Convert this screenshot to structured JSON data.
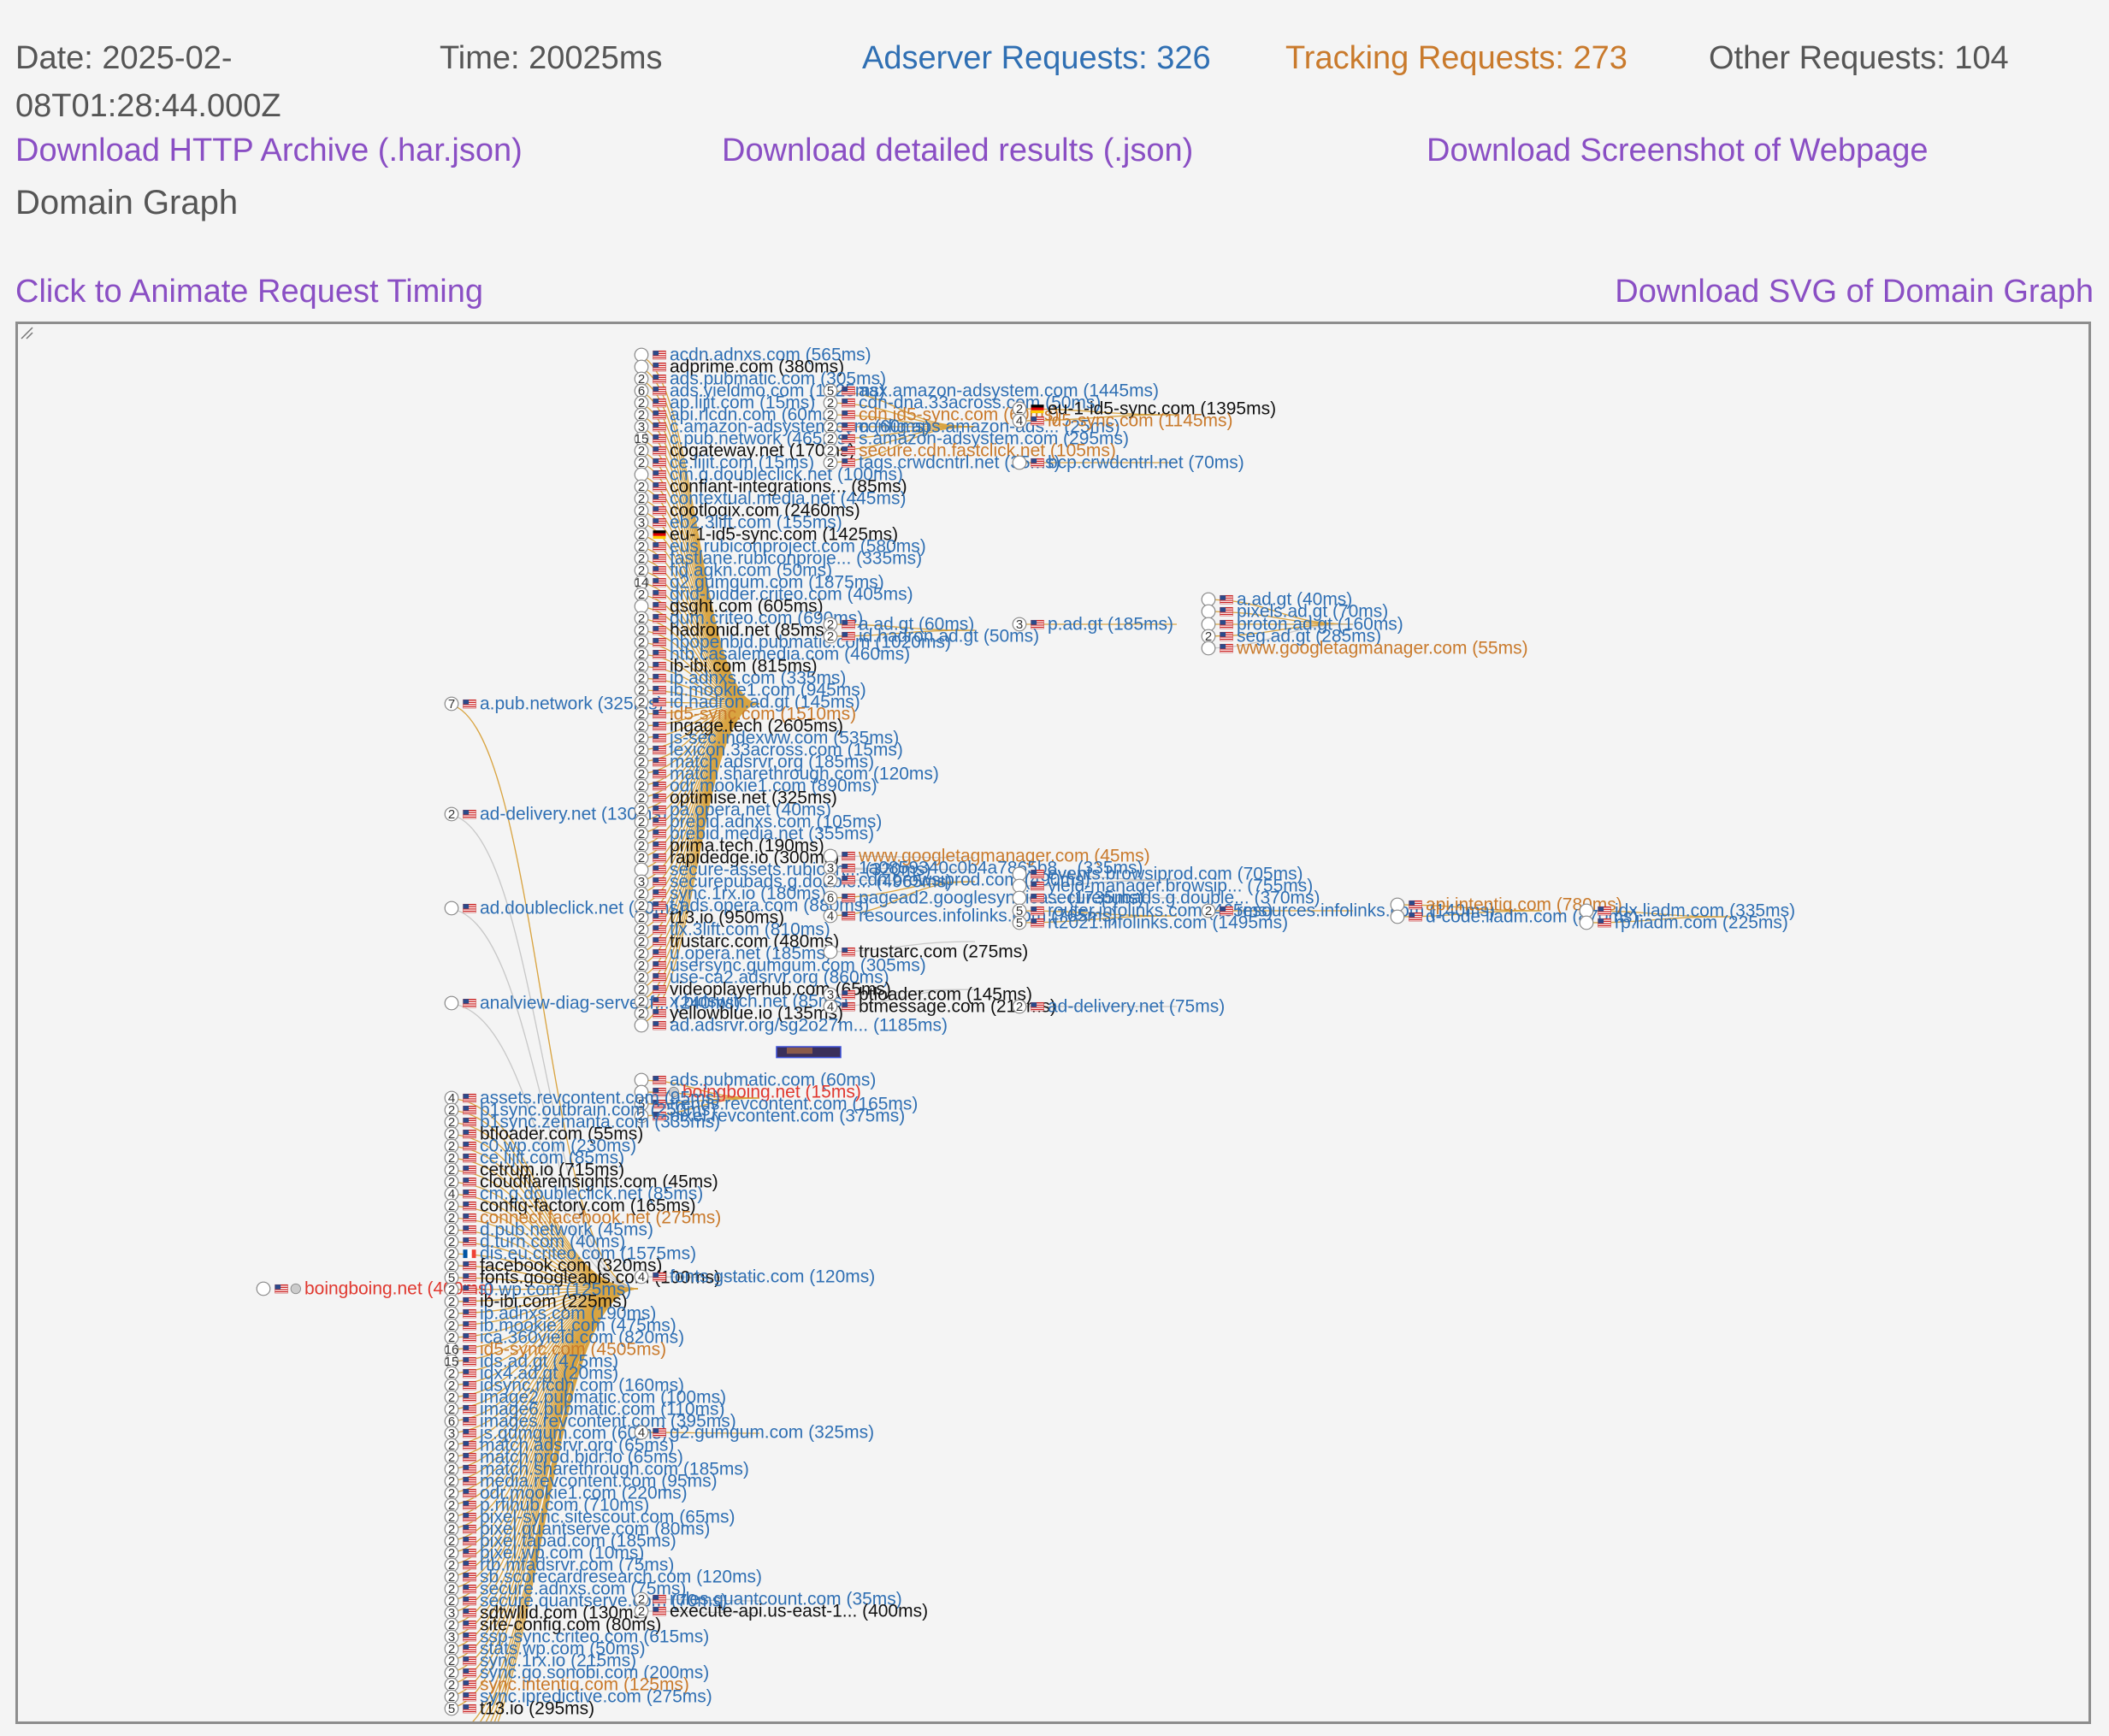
{
  "stats": {
    "date": "Date: 2025-02-08T01:28:44.000Z",
    "time": "Time: 20025ms",
    "adserver": "Adserver Requests: 326",
    "tracking": "Tracking Requests: 273",
    "other": "Other Requests: 104"
  },
  "downloads": {
    "har": "Download HTTP Archive (.har.json)",
    "results": "Download detailed results (.json)",
    "screenshot": "Download Screenshot of Webpage"
  },
  "graph_title": "Domain Graph",
  "actions": {
    "animate": "Click to Animate Request Timing",
    "svg": "Download SVG of Domain Graph"
  },
  "colors": {
    "adserver": "#2f6fb3",
    "tracking": "#c97a2c",
    "other": "#555555",
    "link": "#8a4fc4",
    "edge": "#d9a441",
    "edge_other": "#c8c8c8",
    "root": "#e0382f"
  },
  "graph": {
    "root": {
      "label": "boingboing.net (400ms)",
      "cat": "root"
    },
    "level1": [
      {
        "label": "a.pub.network (325ms)",
        "cat": "ad",
        "count": "7"
      },
      {
        "label": "ad-delivery.net (130ms)",
        "cat": "ad",
        "count": "2"
      },
      {
        "label": "ad.doubleclick.net (50ms)",
        "cat": "ad",
        "count": ""
      },
      {
        "label": "analview-diag-server.f... (240ms)",
        "cat": "ad",
        "count": ""
      }
    ],
    "pub_children": [
      {
        "label": "acdn.adnxs.com (565ms)",
        "cat": "ad",
        "count": ""
      },
      {
        "label": "adprime.com (380ms)",
        "cat": "other",
        "count": ""
      },
      {
        "label": "ads.pubmatic.com (305ms)",
        "cat": "ad",
        "count": "2"
      },
      {
        "label": "ads.yieldmo.com (1725ms)",
        "cat": "ad",
        "count": "6"
      },
      {
        "label": "ap.lijit.com (15ms)",
        "cat": "ad",
        "count": "2"
      },
      {
        "label": "api.rlcdn.com (60ms)",
        "cat": "ad",
        "count": "2"
      },
      {
        "label": "c.amazon-adsystem.com (60ms)",
        "cat": "ad",
        "count": "3"
      },
      {
        "label": "c.pub.network (465ms)",
        "cat": "ad",
        "count": "15"
      },
      {
        "label": "cogateway.net (170ms)",
        "cat": "other",
        "count": "2"
      },
      {
        "label": "ce.lijit.com (15ms)",
        "cat": "ad",
        "count": "2"
      },
      {
        "label": "cm.g.doubleclick.net (100ms)",
        "cat": "ad",
        "count": ""
      },
      {
        "label": "confiant-integrations... (85ms)",
        "cat": "other",
        "count": "2"
      },
      {
        "label": "contextual.media.net (445ms)",
        "cat": "ad",
        "count": "2"
      },
      {
        "label": "cootlogix.com (2460ms)",
        "cat": "other",
        "count": "2"
      },
      {
        "label": "eb2.3lift.com (155ms)",
        "cat": "ad",
        "count": "3"
      },
      {
        "label": "eu-1-id5-sync.com (1425ms)",
        "cat": "other",
        "count": "2",
        "flag": "de"
      },
      {
        "label": "eus.rubiconproject.com (580ms)",
        "cat": "ad",
        "count": "2"
      },
      {
        "label": "fastlane.rubiconproje... (335ms)",
        "cat": "ad",
        "count": "2"
      },
      {
        "label": "fid.agkn.com (50ms)",
        "cat": "ad",
        "count": "2"
      },
      {
        "label": "g2.gumgum.com (1875ms)",
        "cat": "ad",
        "count": "14"
      },
      {
        "label": "grid-bidder.criteo.com (405ms)",
        "cat": "ad",
        "count": "2"
      },
      {
        "label": "gsght.com (605ms)",
        "cat": "other",
        "count": ""
      },
      {
        "label": "gum.criteo.com (690ms)",
        "cat": "ad",
        "count": "2"
      },
      {
        "label": "hadronid.net (85ms)",
        "cat": "other",
        "count": "2"
      },
      {
        "label": "hbopenbid.pubmatic.com (1020ms)",
        "cat": "ad",
        "count": "2"
      },
      {
        "label": "htb.casalemedia.com (460ms)",
        "cat": "ad",
        "count": "2"
      },
      {
        "label": "ib-ibi.com (815ms)",
        "cat": "other",
        "count": "2"
      },
      {
        "label": "ib.adnxs.com (335ms)",
        "cat": "ad",
        "count": "2"
      },
      {
        "label": "ib.mookie1.com (945ms)",
        "cat": "ad",
        "count": "2"
      },
      {
        "label": "id.hadron.ad.gt (145ms)",
        "cat": "ad",
        "count": "2"
      },
      {
        "label": "id5-sync.com (1510ms)",
        "cat": "trk",
        "count": "2"
      },
      {
        "label": "ingage.tech (2605ms)",
        "cat": "other",
        "count": "2"
      },
      {
        "label": "js-sec.indexww.com (535ms)",
        "cat": "ad",
        "count": "2"
      },
      {
        "label": "lexicon.33across.com (15ms)",
        "cat": "ad",
        "count": "2"
      },
      {
        "label": "match.adsrvr.org (185ms)",
        "cat": "ad",
        "count": "2"
      },
      {
        "label": "match.sharethrough.com (120ms)",
        "cat": "ad",
        "count": "2"
      },
      {
        "label": "odr.mookie1.com (890ms)",
        "cat": "ad",
        "count": "2"
      },
      {
        "label": "optimise.net (325ms)",
        "cat": "other",
        "count": "2"
      },
      {
        "label": "pa.opera.net (40ms)",
        "cat": "ad",
        "count": "2"
      },
      {
        "label": "prebid.adnxs.com (105ms)",
        "cat": "ad",
        "count": "2"
      },
      {
        "label": "prebid.media.net (355ms)",
        "cat": "ad",
        "count": "2"
      },
      {
        "label": "prima.tech (190ms)",
        "cat": "other",
        "count": "2"
      },
      {
        "label": "rapidedge.io (300ms)",
        "cat": "other",
        "count": "2"
      },
      {
        "label": "secure-assets.rubicon... (320ms)",
        "cat": "ad",
        "count": ""
      },
      {
        "label": "securepubads.g.double... (4965ms)",
        "cat": "ad",
        "count": "3"
      },
      {
        "label": "sync.1rx.io (180ms)",
        "cat": "ad",
        "count": "2"
      },
      {
        "label": "t.ads.opera.com (880ms)",
        "cat": "ad",
        "count": "2"
      },
      {
        "label": "t13.io (950ms)",
        "cat": "other",
        "count": "2"
      },
      {
        "label": "tlx.3lift.com (810ms)",
        "cat": "ad",
        "count": "2"
      },
      {
        "label": "trustarc.com (480ms)",
        "cat": "other",
        "count": "2"
      },
      {
        "label": "u.opera.net (185ms)",
        "cat": "ad",
        "count": "2"
      },
      {
        "label": "usersync.gumgum.com (305ms)",
        "cat": "ad",
        "count": "2"
      },
      {
        "label": "use-ca2.adsrvr.org (860ms)",
        "cat": "ad",
        "count": "2"
      },
      {
        "label": "videoplayerhub.com (65ms)",
        "cat": "other",
        "count": "2"
      },
      {
        "label": "x.bidswitch.net (85ms)",
        "cat": "ad",
        "count": "2"
      },
      {
        "label": "yellowblue.io (135ms)",
        "cat": "other",
        "count": "2"
      },
      {
        "label": "ad.adsrvr.org/sg2o27m... (1185ms)",
        "cat": "ad",
        "count": ""
      }
    ],
    "pub_grandchildren": [
      {
        "label": "aax.amazon-adsystem.com (1445ms)",
        "cat": "ad",
        "count": "5"
      },
      {
        "label": "cdn-dna.33across.com (50ms)",
        "cat": "ad",
        "count": "2"
      },
      {
        "label": "cdn.id5-sync.com (60ms)",
        "cat": "trk",
        "count": "2"
      },
      {
        "label": "config.aps.amazon-ads... (25ms)",
        "cat": "ad",
        "count": "2"
      },
      {
        "label": "s.amazon-adsystem.com (295ms)",
        "cat": "ad",
        "count": "2"
      },
      {
        "label": "secure.cdn.fastclick.net (105ms)",
        "cat": "trk",
        "count": "2"
      },
      {
        "label": "tags.crwdcntrl.net (35ms)",
        "cat": "ad",
        "count": "2"
      },
      {
        "label": "a.ad.gt (60ms)",
        "cat": "ad",
        "count": "2"
      },
      {
        "label": "id.hadron.ad.gt (50ms)",
        "cat": "ad",
        "count": "2"
      },
      {
        "label": "www.googletagmanager.com (45ms)",
        "cat": "trk",
        "count": ""
      },
      {
        "label": "1a0859340c0b4a7865b8... (335ms)",
        "cat": "ad",
        "count": "3"
      },
      {
        "label": "cdn.browsiprod.com (490ms)",
        "cat": "ad",
        "count": "2"
      },
      {
        "label": "pagead2.googlesyndica... (1735ms)",
        "cat": "ad",
        "count": "6"
      },
      {
        "label": "resources.infolinks.com (765ms)",
        "cat": "ad",
        "count": "4"
      },
      {
        "label": "trustarc.com (275ms)",
        "cat": "other",
        "count": ""
      },
      {
        "label": "btloader.com (145ms)",
        "cat": "other",
        "count": "3"
      },
      {
        "label": "btmessage.com (210ms)",
        "cat": "other",
        "count": "4"
      }
    ],
    "level4": [
      {
        "label": "eu-1-id5-sync.com (1395ms)",
        "cat": "other",
        "count": "2",
        "flag": "de"
      },
      {
        "label": "id5-sync.com (1145ms)",
        "cat": "trk",
        "count": "4"
      },
      {
        "label": "bcp.crwdcntrl.net (70ms)",
        "cat": "ad",
        "count": ""
      },
      {
        "label": "p.ad.gt (185ms)",
        "cat": "ad",
        "count": "3"
      },
      {
        "label": "events.browsiprod.com (705ms)",
        "cat": "ad",
        "count": ""
      },
      {
        "label": "yield-manager.browsip... (755ms)",
        "cat": "ad",
        "count": ""
      },
      {
        "label": "securepubads.g.double... (370ms)",
        "cat": "ad",
        "count": ""
      },
      {
        "label": "router.infolinks.com (465ms)",
        "cat": "ad",
        "count": "5"
      },
      {
        "label": "rt2021.infolinks.com (1495ms)",
        "cat": "ad",
        "count": "5"
      },
      {
        "label": "ad-delivery.net (75ms)",
        "cat": "ad",
        "count": "2"
      }
    ],
    "level5": [
      {
        "label": "a.ad.gt (40ms)",
        "cat": "ad",
        "count": ""
      },
      {
        "label": "pixels.ad.gt (70ms)",
        "cat": "ad",
        "count": ""
      },
      {
        "label": "proton.ad.gt (160ms)",
        "cat": "ad",
        "count": ""
      },
      {
        "label": "seg.ad.gt (285ms)",
        "cat": "ad",
        "count": "2"
      },
      {
        "label": "www.googletagmanager.com (55ms)",
        "cat": "trk",
        "count": ""
      },
      {
        "label": "resources.infolinks.com (140ms)",
        "cat": "ad",
        "count": "2"
      },
      {
        "label": "api.intentiq.com (780ms)",
        "cat": "trk",
        "count": ""
      },
      {
        "label": "d-code.liadm.com (870ms)",
        "cat": "ad",
        "count": ""
      },
      {
        "label": "idx.liadm.com (335ms)",
        "cat": "ad",
        "count": ""
      },
      {
        "label": "rp.liadm.com (225ms)",
        "cat": "ad",
        "count": ""
      }
    ],
    "rev_children": [
      {
        "label": "ads.pubmatic.com (60ms)",
        "cat": "ad",
        "count": ""
      },
      {
        "label": "boingboing.net (15ms)",
        "cat": "root",
        "count": ""
      },
      {
        "label": "trends.revcontent.com (165ms)",
        "cat": "ad",
        "count": "5"
      },
      {
        "label": "pixel.revcontent.com (375ms)",
        "cat": "ad",
        "count": "2"
      }
    ],
    "root_children": [
      {
        "label": "assets.revcontent.com (95ms)",
        "cat": "ad",
        "count": "4"
      },
      {
        "label": "b1sync.outbrain.com (250ms)",
        "cat": "ad",
        "count": "2"
      },
      {
        "label": "b1sync.zemanta.com (335ms)",
        "cat": "ad",
        "count": "2"
      },
      {
        "label": "btloader.com (55ms)",
        "cat": "other",
        "count": "2"
      },
      {
        "label": "c0.wp.com (230ms)",
        "cat": "ad",
        "count": "2"
      },
      {
        "label": "ce.lijit.com (85ms)",
        "cat": "ad",
        "count": "2"
      },
      {
        "label": "cetrum.io (715ms)",
        "cat": "other",
        "count": "2"
      },
      {
        "label": "cloudflareinsights.com (45ms)",
        "cat": "other",
        "count": "2"
      },
      {
        "label": "cm.g.doubleclick.net (85ms)",
        "cat": "ad",
        "count": "4"
      },
      {
        "label": "config-factory.com (165ms)",
        "cat": "other",
        "count": "2"
      },
      {
        "label": "connect.facebook.net (275ms)",
        "cat": "trk",
        "count": "2"
      },
      {
        "label": "d.pub.network (45ms)",
        "cat": "ad",
        "count": "2"
      },
      {
        "label": "d.turn.com (40ms)",
        "cat": "ad",
        "count": "2"
      },
      {
        "label": "dis.eu.criteo.com (1575ms)",
        "cat": "ad",
        "count": "2",
        "flag": "fr"
      },
      {
        "label": "facebook.com (320ms)",
        "cat": "other",
        "count": "2"
      },
      {
        "label": "fonts.googleapis.com (100ms)",
        "cat": "other",
        "count": "5"
      },
      {
        "label": "i0.wp.com (125ms)",
        "cat": "ad",
        "count": "2"
      },
      {
        "label": "ib-ibi.com (225ms)",
        "cat": "other",
        "count": "2"
      },
      {
        "label": "ib.adnxs.com (190ms)",
        "cat": "ad",
        "count": "2"
      },
      {
        "label": "ib.mookie1.com (475ms)",
        "cat": "ad",
        "count": "2"
      },
      {
        "label": "ica.360yield.com (820ms)",
        "cat": "ad",
        "count": "2"
      },
      {
        "label": "id5-sync.com (4505ms)",
        "cat": "trk",
        "count": "16"
      },
      {
        "label": "ids.ad.gt (475ms)",
        "cat": "ad",
        "count": "15"
      },
      {
        "label": "idx4.ad.gt (20ms)",
        "cat": "ad",
        "count": "2"
      },
      {
        "label": "idsync.rlcdn.com (160ms)",
        "cat": "ad",
        "count": "2"
      },
      {
        "label": "image2.pubmatic.com (100ms)",
        "cat": "ad",
        "count": "2"
      },
      {
        "label": "image6.pubmatic.com (110ms)",
        "cat": "ad",
        "count": "2"
      },
      {
        "label": "images.revcontent.com (395ms)",
        "cat": "ad",
        "count": "6"
      },
      {
        "label": "js.gumgum.com (60ms)",
        "cat": "ad",
        "count": "3"
      },
      {
        "label": "match.adsrvr.org (65ms)",
        "cat": "ad",
        "count": "2"
      },
      {
        "label": "match.prod.bidr.io (65ms)",
        "cat": "ad",
        "count": "2"
      },
      {
        "label": "match.sharethrough.com (185ms)",
        "cat": "ad",
        "count": "2"
      },
      {
        "label": "media.revcontent.com (95ms)",
        "cat": "ad",
        "count": "2"
      },
      {
        "label": "odr.mookie1.com (220ms)",
        "cat": "ad",
        "count": "2"
      },
      {
        "label": "p.rfihub.com (710ms)",
        "cat": "ad",
        "count": "2"
      },
      {
        "label": "pixel-sync.sitescout.com (65ms)",
        "cat": "ad",
        "count": "2"
      },
      {
        "label": "pixel.quantserve.com (80ms)",
        "cat": "ad",
        "count": "2"
      },
      {
        "label": "pixel.tapad.com (185ms)",
        "cat": "ad",
        "count": "2"
      },
      {
        "label": "pixel.wp.com (10ms)",
        "cat": "ad",
        "count": "2"
      },
      {
        "label": "rtb.mfadsrvr.com (75ms)",
        "cat": "ad",
        "count": "2"
      },
      {
        "label": "sb.scorecardresearch.com (120ms)",
        "cat": "ad",
        "count": "2"
      },
      {
        "label": "secure.adnxs.com (75ms)",
        "cat": "ad",
        "count": "2"
      },
      {
        "label": "secure.quantserve.com (70ms)",
        "cat": "ad",
        "count": "2"
      },
      {
        "label": "sdtwllid.com (130ms)",
        "cat": "other",
        "count": "3"
      },
      {
        "label": "site-config.com (80ms)",
        "cat": "other",
        "count": "2"
      },
      {
        "label": "ssp-sync.criteo.com (615ms)",
        "cat": "ad",
        "count": "3"
      },
      {
        "label": "stats.wp.com (50ms)",
        "cat": "ad",
        "count": "2"
      },
      {
        "label": "sync.1rx.io (215ms)",
        "cat": "ad",
        "count": "2"
      },
      {
        "label": "sync.go.sonobi.com (200ms)",
        "cat": "ad",
        "count": "2"
      },
      {
        "label": "sync.intentiq.com (125ms)",
        "cat": "trk",
        "count": "2"
      },
      {
        "label": "sync.ipredictive.com (275ms)",
        "cat": "ad",
        "count": "2"
      },
      {
        "label": "t13.io (295ms)",
        "cat": "other",
        "count": "5"
      }
    ],
    "root_grandchildren": [
      {
        "label": "fonts.gstatic.com (120ms)",
        "cat": "ad",
        "count": "4"
      },
      {
        "label": "g2.gumgum.com (325ms)",
        "cat": "ad",
        "count": "4"
      },
      {
        "label": "rules.quantcount.com (35ms)",
        "cat": "ad",
        "count": "2"
      },
      {
        "label": "execute-api.us-east-1... (400ms)",
        "cat": "other",
        "count": "2"
      }
    ]
  }
}
